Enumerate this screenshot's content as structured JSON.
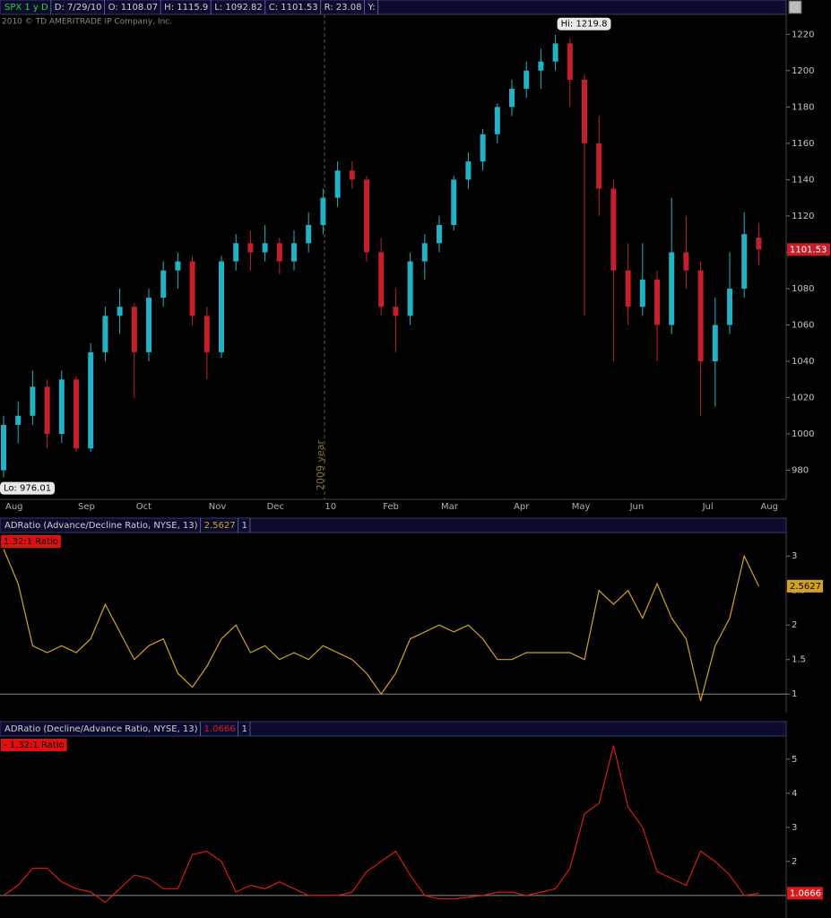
{
  "chart_data": [
    {
      "type": "candlestick",
      "header": [
        "SPX 1 y D",
        "D: 7/29/10",
        "O: 1108.07",
        "H: 1115.9",
        "L: 1092.82",
        "C: 1101.53",
        "R: 23.08",
        "Y:"
      ],
      "copyright": "2010 © TD AMERITRADE IP Company, Inc.",
      "categories": [
        "Aug",
        null,
        null,
        null,
        null,
        "Sep",
        null,
        null,
        null,
        "Oct",
        null,
        null,
        null,
        null,
        "Nov",
        null,
        null,
        null,
        "Dec",
        null,
        null,
        null,
        "10",
        null,
        null,
        null,
        "Feb",
        null,
        null,
        null,
        "Mar",
        null,
        null,
        null,
        null,
        "Apr",
        null,
        null,
        null,
        "May",
        null,
        null,
        null,
        "Jun",
        null,
        null,
        null,
        null,
        "Jul",
        null,
        null,
        null,
        "Aug"
      ],
      "open": [
        980,
        1005,
        1010,
        1026,
        1000,
        1030,
        992,
        1045,
        1065,
        1070,
        1045,
        1075,
        1090,
        1095,
        1065,
        1045,
        1095,
        1105,
        1100,
        1105,
        1095,
        1105,
        1115,
        1130,
        1145,
        1140,
        1100,
        1070,
        1065,
        1095,
        1105,
        1115,
        1140,
        1150,
        1165,
        1180,
        1190,
        1200,
        1205,
        1215,
        1195,
        1160,
        1135,
        1090,
        1070,
        1085,
        1060,
        1100,
        1090,
        1040,
        1060,
        1080,
        1108.07
      ],
      "high": [
        1010,
        1018,
        1035,
        1030,
        1035,
        1032,
        1050,
        1070,
        1080,
        1072,
        1080,
        1095,
        1100,
        1098,
        1070,
        1098,
        1110,
        1112,
        1115,
        1108,
        1112,
        1122,
        1135,
        1150,
        1150,
        1142,
        1108,
        1080,
        1100,
        1110,
        1120,
        1142,
        1155,
        1168,
        1182,
        1195,
        1205,
        1212,
        1219.8,
        1218,
        1198,
        1175,
        1140,
        1105,
        1105,
        1090,
        1130,
        1120,
        1095,
        1075,
        1100,
        1122,
        1115.9
      ],
      "low": [
        976.01,
        995,
        1005,
        992,
        995,
        990,
        990,
        1040,
        1055,
        1020,
        1040,
        1070,
        1080,
        1060,
        1030,
        1042,
        1090,
        1090,
        1095,
        1088,
        1090,
        1100,
        1110,
        1125,
        1135,
        1095,
        1065,
        1045,
        1060,
        1085,
        1100,
        1112,
        1135,
        1145,
        1160,
        1175,
        1185,
        1190,
        1200,
        1180,
        1065,
        1120,
        1040,
        1060,
        1065,
        1040,
        1055,
        1080,
        1010,
        1015,
        1055,
        1075,
        1092.82
      ],
      "close": [
        1005,
        1010,
        1026,
        1000,
        1030,
        992,
        1045,
        1065,
        1070,
        1045,
        1075,
        1090,
        1095,
        1065,
        1045,
        1095,
        1105,
        1100,
        1105,
        1095,
        1105,
        1115,
        1130,
        1145,
        1140,
        1100,
        1070,
        1065,
        1095,
        1105,
        1115,
        1140,
        1150,
        1165,
        1180,
        1190,
        1200,
        1205,
        1215,
        1195,
        1160,
        1135,
        1090,
        1070,
        1085,
        1060,
        1100,
        1090,
        1040,
        1060,
        1080,
        1110,
        1101.53
      ],
      "up_color": "#21b3c4",
      "down_color": "#c4202c",
      "high_label": "Hi: 1219.8",
      "low_label": "Lo: 976.01",
      "year_label": "2009 year",
      "ylim": [
        964,
        1231
      ],
      "yticks": [
        980,
        1000,
        1020,
        1040,
        1060,
        1080,
        1100,
        1120,
        1140,
        1160,
        1180,
        1200,
        1220
      ]
    },
    {
      "type": "line",
      "header": [
        "ADRatio (Advance/Decline Ratio, NYSE, 13)",
        "2.5627",
        "1"
      ],
      "badge": "1.32:1 Ratio",
      "values": [
        3.1,
        2.6,
        1.7,
        1.6,
        1.7,
        1.6,
        1.8,
        2.3,
        1.9,
        1.5,
        1.7,
        1.8,
        1.3,
        1.1,
        1.4,
        1.8,
        2.0,
        1.6,
        1.7,
        1.5,
        1.6,
        1.5,
        1.7,
        1.6,
        1.5,
        1.3,
        1.0,
        1.3,
        1.8,
        1.9,
        2.0,
        1.9,
        2.0,
        1.8,
        1.5,
        1.5,
        1.6,
        1.6,
        1.6,
        1.6,
        1.5,
        2.5,
        2.3,
        2.5,
        2.1,
        2.6,
        2.1,
        1.8,
        0.9,
        1.7,
        2.1,
        3.0,
        2.5627
      ],
      "color": "#d4a21c",
      "reference_line": 1,
      "ylim": [
        0.73,
        3.34
      ],
      "yticks": [
        1,
        1.5,
        2,
        2.5,
        3
      ]
    },
    {
      "type": "line",
      "header": [
        "ADRatio (Decline/Advance Ratio, NYSE, 13)",
        "1.0666",
        "1"
      ],
      "badge": "- 1.32:1 Ratio",
      "values": [
        1.0,
        1.3,
        1.8,
        1.8,
        1.4,
        1.2,
        1.1,
        0.8,
        1.2,
        1.6,
        1.5,
        1.2,
        1.2,
        2.2,
        2.3,
        2.0,
        1.1,
        1.3,
        1.2,
        1.4,
        1.2,
        1.0,
        1.0,
        1.0,
        1.1,
        1.7,
        2.0,
        2.3,
        1.6,
        1.0,
        0.9,
        0.9,
        0.95,
        1.0,
        1.1,
        1.1,
        1.0,
        1.1,
        1.2,
        1.8,
        3.4,
        3.7,
        5.4,
        3.6,
        3.0,
        1.7,
        1.5,
        1.3,
        2.3,
        2.0,
        1.6,
        1.0,
        1.0666
      ],
      "color": "#d81a1a",
      "reference_line": 1,
      "ylim": [
        0.34,
        5.68
      ],
      "yticks": [
        2,
        3,
        4,
        5
      ]
    }
  ]
}
